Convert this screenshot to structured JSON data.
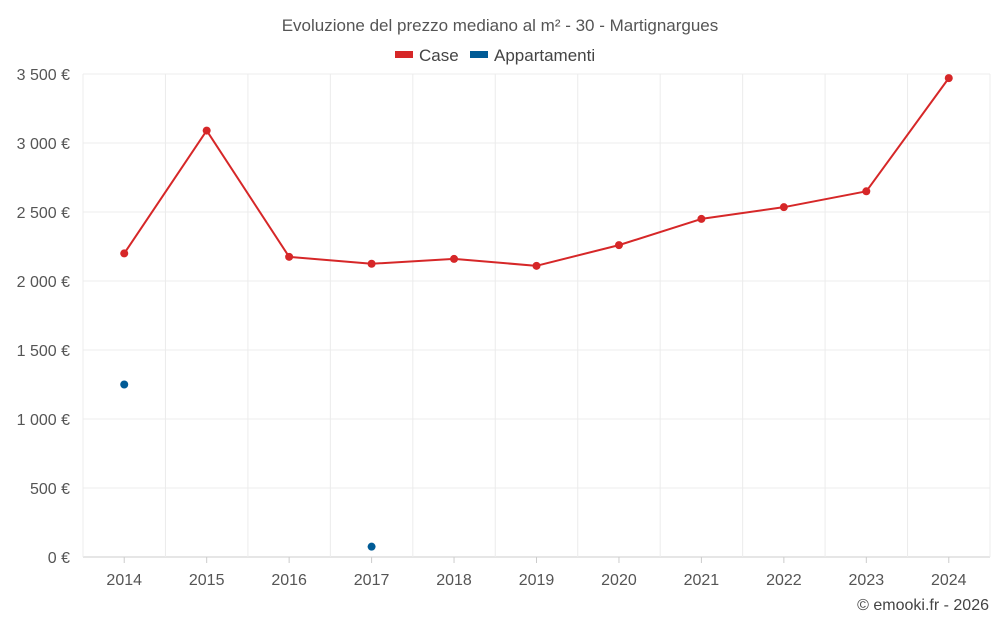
{
  "chart_data": {
    "type": "line",
    "title": "Evoluzione del prezzo mediano al m² - 30 - Martignargues",
    "categories": [
      "2014",
      "2015",
      "2016",
      "2017",
      "2018",
      "2019",
      "2020",
      "2021",
      "2022",
      "2023",
      "2024"
    ],
    "series": [
      {
        "name": "Case",
        "color": "#d62728",
        "values": [
          2200,
          3090,
          2175,
          2125,
          2160,
          2110,
          2260,
          2450,
          2535,
          2650,
          3470
        ]
      },
      {
        "name": "Appartamenti",
        "color": "#005b96",
        "values": [
          1250,
          null,
          null,
          75,
          null,
          null,
          null,
          null,
          null,
          null,
          null
        ]
      }
    ],
    "ylim": [
      0,
      3500
    ],
    "yticks": [
      0,
      500,
      1000,
      1500,
      2000,
      2500,
      3000,
      3500
    ],
    "ytick_labels": [
      "0 €",
      "500 €",
      "1 000 €",
      "1 500 €",
      "2 000 €",
      "2 500 €",
      "3 000 €",
      "3 500 €"
    ],
    "grid": true,
    "legend_position": "top-center"
  },
  "credit": "© emooki.fr - 2026"
}
